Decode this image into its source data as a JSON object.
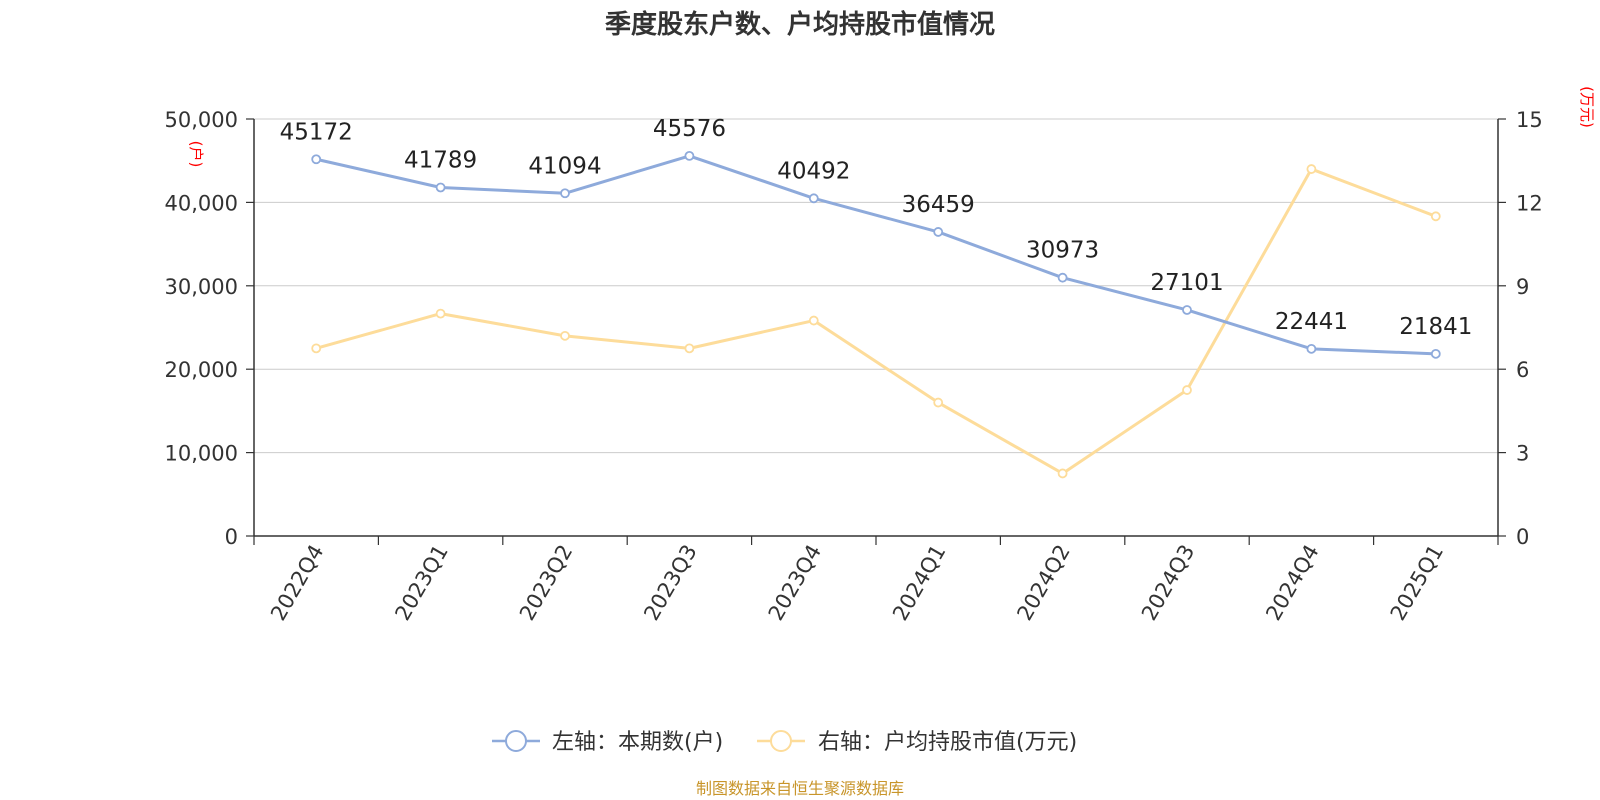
{
  "chart_data": {
    "type": "line",
    "title": "季度股东户数、户均持股市值情况",
    "categories": [
      "2022Q4",
      "2023Q1",
      "2023Q2",
      "2023Q3",
      "2023Q4",
      "2024Q1",
      "2024Q2",
      "2024Q3",
      "2024Q4",
      "2025Q1"
    ],
    "left_axis": {
      "unit": "(户)",
      "ylim": [
        0,
        50000
      ],
      "ticks": [
        "0",
        "10,000",
        "20,000",
        "30,000",
        "40,000",
        "50,000"
      ]
    },
    "right_axis": {
      "unit": "(万元)",
      "ylim": [
        0,
        15
      ],
      "ticks": [
        "0",
        "3",
        "6",
        "9",
        "12",
        "15"
      ]
    },
    "series": [
      {
        "name": "左轴：本期数(户)",
        "axis": "left",
        "color": "#8eaadb",
        "values": [
          45172,
          41789,
          41094,
          45576,
          40492,
          36459,
          30973,
          27101,
          22441,
          21841
        ],
        "labels": [
          "45172",
          "41789",
          "41094",
          "45576",
          "40492",
          "36459",
          "30973",
          "27101",
          "22441",
          "21841"
        ]
      },
      {
        "name": "右轴：户均持股市值(万元)",
        "axis": "right",
        "color": "#fddc9a",
        "values": [
          6.75,
          8.0,
          7.2,
          6.75,
          7.75,
          4.8,
          2.25,
          5.25,
          13.2,
          11.5
        ]
      }
    ],
    "grid": true,
    "legend_position": "bottom"
  },
  "source": "制图数据来自恒生聚源数据库"
}
